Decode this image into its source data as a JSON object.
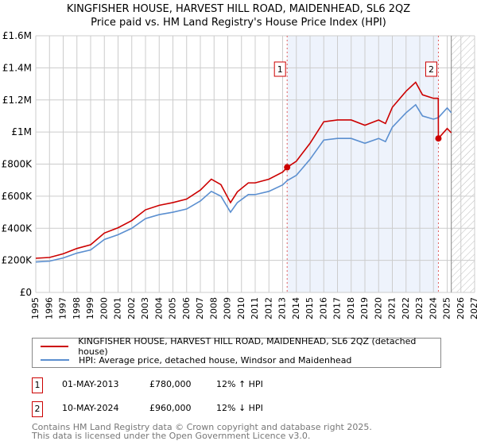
{
  "title": "KINGFISHER HOUSE, HARVEST HILL ROAD, MAIDENHEAD, SL6 2QZ",
  "subtitle": "Price paid vs. HM Land Registry's House Price Index (HPI)",
  "chart_data": {
    "type": "line",
    "title": "KINGFISHER HOUSE, HARVEST HILL ROAD, MAIDENHEAD, SL6 2QZ",
    "xlim": [
      1995,
      2027
    ],
    "ylim": [
      0,
      1600000
    ],
    "xticks": [
      1995,
      1996,
      1997,
      1998,
      1999,
      2000,
      2001,
      2002,
      2003,
      2004,
      2005,
      2006,
      2007,
      2008,
      2009,
      2010,
      2011,
      2012,
      2013,
      2014,
      2015,
      2016,
      2017,
      2018,
      2019,
      2020,
      2021,
      2022,
      2023,
      2024,
      2025,
      2026,
      2027
    ],
    "yticks": [
      {
        "v": 0,
        "label": "£0"
      },
      {
        "v": 200000,
        "label": "£200K"
      },
      {
        "v": 400000,
        "label": "£400K"
      },
      {
        "v": 600000,
        "label": "£600K"
      },
      {
        "v": 800000,
        "label": "£800K"
      },
      {
        "v": 1000000,
        "label": "£1M"
      },
      {
        "v": 1200000,
        "label": "£1.2M"
      },
      {
        "v": 1400000,
        "label": "£1.4M"
      },
      {
        "v": 1600000,
        "label": "£1.6M"
      }
    ],
    "grid": true,
    "series": [
      {
        "name": "KINGFISHER HOUSE, HARVEST HILL ROAD, MAIDENHEAD, SL6 2QZ (detached house)",
        "color": "#cc0000",
        "x": [
          1995,
          1996,
          1997,
          1998,
          1999,
          2000,
          2001,
          2002,
          2003,
          2004,
          2005,
          2006,
          2007,
          2007.8,
          2008.5,
          2009.2,
          2009.7,
          2010.5,
          2011,
          2012,
          2013,
          2013.33,
          2014,
          2015,
          2016,
          2017,
          2018,
          2019,
          2020,
          2020.5,
          2021,
          2022,
          2022.7,
          2023.2,
          2024,
          2024.35,
          2024.36,
          2025,
          2025.3
        ],
        "y": [
          213000,
          218000,
          241000,
          274000,
          297000,
          370000,
          403000,
          448000,
          515000,
          543000,
          560000,
          582000,
          638000,
          706000,
          672000,
          560000,
          627000,
          683000,
          683000,
          706000,
          750000,
          780000,
          818000,
          930000,
          1064000,
          1075000,
          1075000,
          1042000,
          1075000,
          1053000,
          1154000,
          1254000,
          1310000,
          1232000,
          1210000,
          1210000,
          960000,
          1022000,
          995000
        ]
      },
      {
        "name": "HPI: Average price, detached house, Windsor and Maidenhead",
        "color": "#5b8fd0",
        "x": [
          1995,
          1996,
          1997,
          1998,
          1999,
          2000,
          2001,
          2002,
          2003,
          2004,
          2005,
          2006,
          2007,
          2007.8,
          2008.5,
          2009.2,
          2009.7,
          2010.5,
          2011,
          2012,
          2013,
          2013.33,
          2014,
          2015,
          2016,
          2017,
          2018,
          2019,
          2020,
          2020.5,
          2021,
          2022,
          2022.7,
          2023.2,
          2024,
          2024.36,
          2025,
          2025.3
        ],
        "y": [
          190000,
          195000,
          215000,
          245000,
          265000,
          330000,
          360000,
          400000,
          460000,
          485000,
          500000,
          520000,
          570000,
          630000,
          600000,
          500000,
          560000,
          610000,
          610000,
          630000,
          670000,
          697000,
          730000,
          830000,
          950000,
          960000,
          960000,
          930000,
          960000,
          940000,
          1030000,
          1120000,
          1170000,
          1100000,
          1080000,
          1090000,
          1150000,
          1120000
        ]
      }
    ],
    "sales": [
      {
        "id": "1",
        "x": 2013.33,
        "y": 780000
      },
      {
        "id": "2",
        "x": 2024.36,
        "y": 960000
      }
    ],
    "shaded_range": [
      2013.33,
      2024.36
    ],
    "forecast_from": 2025.3
  },
  "legend": {
    "red": "KINGFISHER HOUSE, HARVEST HILL ROAD, MAIDENHEAD, SL6 2QZ (detached house)",
    "blue": "HPI: Average price, detached house, Windsor and Maidenhead"
  },
  "transactions": [
    {
      "id": "1",
      "date": "01-MAY-2013",
      "price": "£780,000",
      "hpi": "12% ↑ HPI"
    },
    {
      "id": "2",
      "date": "10-MAY-2024",
      "price": "£960,000",
      "hpi": "12% ↓ HPI"
    }
  ],
  "footer": {
    "line1": "Contains HM Land Registry data © Crown copyright and database right 2025.",
    "line2": "This data is licensed under the Open Government Licence v3.0."
  }
}
